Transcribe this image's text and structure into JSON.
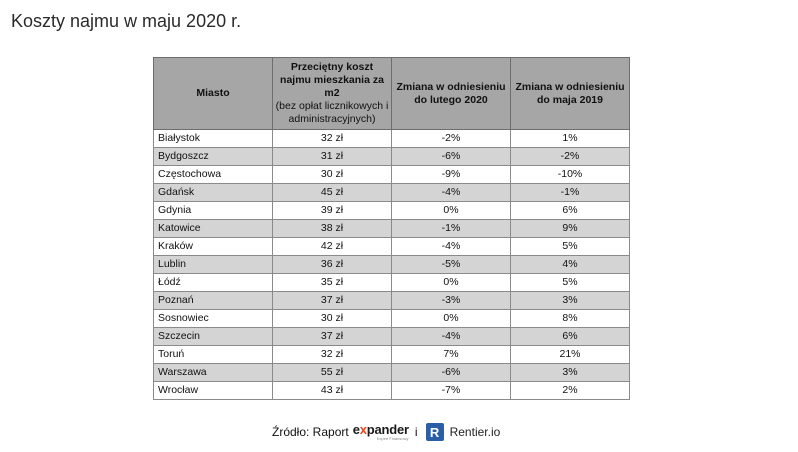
{
  "title": "Koszty najmu w maju 2020 r.",
  "table": {
    "headers": {
      "city": "Miasto",
      "cost_main": "Przeciętny koszt najmu mieszkania za m2",
      "cost_sub": "(bez opłat licznikowych i administracyjnych)",
      "change_feb": "Zmiana w odniesieniu do lutego 2020",
      "change_may": "Zmiana w odniesieniu do maja 2019"
    },
    "rows": [
      {
        "city": "Białystok",
        "cost": "32 zł",
        "change_feb": "-2%",
        "change_may": "1%"
      },
      {
        "city": "Bydgoszcz",
        "cost": "31 zł",
        "change_feb": "-6%",
        "change_may": "-2%"
      },
      {
        "city": "Częstochowa",
        "cost": "30 zł",
        "change_feb": "-9%",
        "change_may": "-10%"
      },
      {
        "city": "Gdańsk",
        "cost": "45 zł",
        "change_feb": "-4%",
        "change_may": "-1%"
      },
      {
        "city": "Gdynia",
        "cost": "39 zł",
        "change_feb": "0%",
        "change_may": "6%"
      },
      {
        "city": "Katowice",
        "cost": "38 zł",
        "change_feb": "-1%",
        "change_may": "9%"
      },
      {
        "city": "Kraków",
        "cost": "42 zł",
        "change_feb": "-4%",
        "change_may": "5%"
      },
      {
        "city": "Lublin",
        "cost": "36 zł",
        "change_feb": "-5%",
        "change_may": "4%"
      },
      {
        "city": "Łódź",
        "cost": "35 zł",
        "change_feb": "0%",
        "change_may": "5%"
      },
      {
        "city": "Poznań",
        "cost": "37 zł",
        "change_feb": "-3%",
        "change_may": "3%"
      },
      {
        "city": "Sosnowiec",
        "cost": "30 zł",
        "change_feb": "0%",
        "change_may": "8%"
      },
      {
        "city": "Szczecin",
        "cost": "37 zł",
        "change_feb": "-4%",
        "change_may": "6%"
      },
      {
        "city": "Toruń",
        "cost": "32 zł",
        "change_feb": "7%",
        "change_may": "21%"
      },
      {
        "city": "Warszawa",
        "cost": "55 zł",
        "change_feb": "-6%",
        "change_may": "3%"
      },
      {
        "city": "Wrocław",
        "cost": "43 zł",
        "change_feb": "-7%",
        "change_may": "2%"
      }
    ]
  },
  "source": {
    "label": "Źródło: Raport",
    "expander_prefix": "e",
    "expander_x": "x",
    "expander_suffix": "pander",
    "expander_tagline": "Expert Finansowy",
    "conjunction": "i",
    "rentier_badge": "R",
    "rentier_name": "Rentier.io"
  }
}
